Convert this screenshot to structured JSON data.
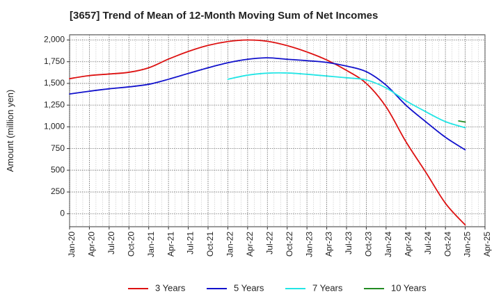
{
  "chart_data": {
    "type": "line",
    "title": "[3657]  Trend of Mean of 12-Month Moving Sum of Net Incomes",
    "xlabel": "",
    "ylabel": "Amount (million yen)",
    "ylim": [
      -150,
      2060
    ],
    "yticks": [
      0,
      250,
      500,
      750,
      1000,
      1250,
      1500,
      1750,
      2000
    ],
    "ytick_labels": [
      "0",
      "250",
      "500",
      "750",
      "1,000",
      "1,250",
      "1,500",
      "1,750",
      "2,000"
    ],
    "xticks": [
      "Jan-20",
      "Apr-20",
      "Jul-20",
      "Oct-20",
      "Jan-21",
      "Apr-21",
      "Jul-21",
      "Oct-21",
      "Jan-22",
      "Apr-22",
      "Jul-22",
      "Oct-22",
      "Jan-23",
      "Apr-23",
      "Jul-23",
      "Oct-23",
      "Jan-24",
      "Apr-24",
      "Jul-24",
      "Oct-24",
      "Jan-25",
      "Apr-25"
    ],
    "grid": true,
    "legend_position": "bottom",
    "series": [
      {
        "name": "3 Years",
        "color": "#dd1111",
        "points": [
          [
            "Jan-20",
            1555
          ],
          [
            "Apr-20",
            1590
          ],
          [
            "Jul-20",
            1608
          ],
          [
            "Oct-20",
            1628
          ],
          [
            "Jan-21",
            1680
          ],
          [
            "Apr-21",
            1780
          ],
          [
            "Jul-21",
            1868
          ],
          [
            "Oct-21",
            1938
          ],
          [
            "Jan-22",
            1982
          ],
          [
            "Apr-22",
            2000
          ],
          [
            "Jul-22",
            1985
          ],
          [
            "Oct-22",
            1935
          ],
          [
            "Jan-23",
            1862
          ],
          [
            "Apr-23",
            1770
          ],
          [
            "Jul-23",
            1650
          ],
          [
            "Oct-23",
            1500
          ],
          [
            "Jan-24",
            1230
          ],
          [
            "Apr-24",
            830
          ],
          [
            "Jul-24",
            480
          ],
          [
            "Oct-24",
            120
          ],
          [
            "Jan-25",
            -130
          ]
        ]
      },
      {
        "name": "5 Years",
        "color": "#1111cc",
        "points": [
          [
            "Jan-20",
            1378
          ],
          [
            "Apr-20",
            1410
          ],
          [
            "Jul-20",
            1438
          ],
          [
            "Oct-20",
            1460
          ],
          [
            "Jan-21",
            1490
          ],
          [
            "Apr-21",
            1548
          ],
          [
            "Jul-21",
            1615
          ],
          [
            "Oct-21",
            1680
          ],
          [
            "Jan-22",
            1738
          ],
          [
            "Apr-22",
            1778
          ],
          [
            "Jul-22",
            1795
          ],
          [
            "Oct-22",
            1778
          ],
          [
            "Jan-23",
            1762
          ],
          [
            "Apr-23",
            1742
          ],
          [
            "Jul-23",
            1700
          ],
          [
            "Oct-23",
            1635
          ],
          [
            "Jan-24",
            1480
          ],
          [
            "Apr-24",
            1250
          ],
          [
            "Jul-24",
            1060
          ],
          [
            "Oct-24",
            880
          ],
          [
            "Jan-25",
            735
          ]
        ]
      },
      {
        "name": "7 Years",
        "color": "#22e5e5",
        "points": [
          [
            "Jan-22",
            1548
          ],
          [
            "Apr-22",
            1595
          ],
          [
            "Jul-22",
            1618
          ],
          [
            "Oct-22",
            1620
          ],
          [
            "Jan-23",
            1605
          ],
          [
            "Apr-23",
            1585
          ],
          [
            "Jul-23",
            1565
          ],
          [
            "Oct-23",
            1540
          ],
          [
            "Jan-24",
            1448
          ],
          [
            "Apr-24",
            1300
          ],
          [
            "Jul-24",
            1175
          ],
          [
            "Oct-24",
            1060
          ],
          [
            "Jan-25",
            990
          ]
        ]
      },
      {
        "name": "10 Years",
        "color": "#228b22",
        "points": [
          [
            "Dec-24",
            1068
          ],
          [
            "Jan-25",
            1055
          ]
        ]
      }
    ]
  }
}
